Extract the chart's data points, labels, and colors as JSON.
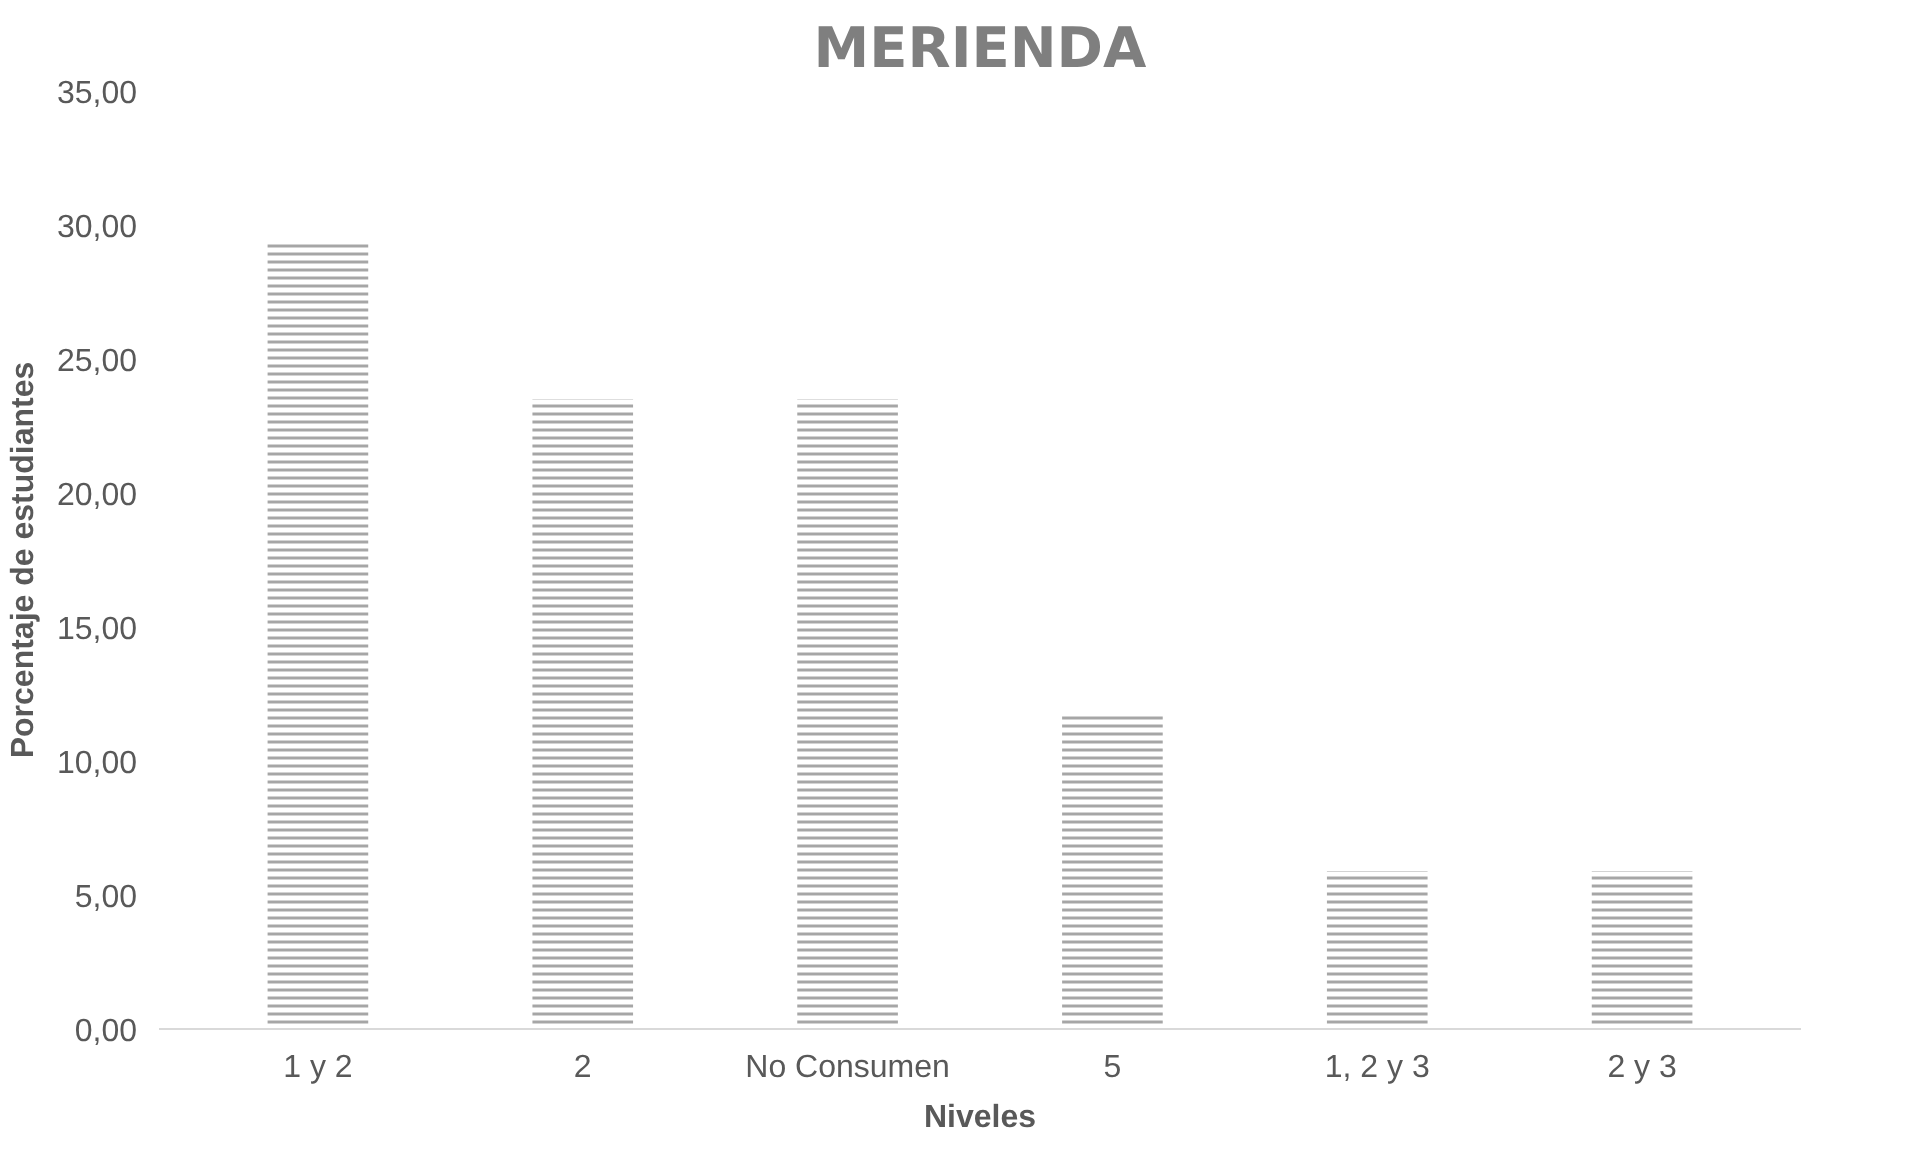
{
  "chart_data": {
    "type": "bar",
    "title": "MERIENDA",
    "xlabel": "Niveles",
    "ylabel": "Porcentaje de estudiantes",
    "categories": [
      "1 y 2",
      "2",
      "No Consumen",
      "5",
      "1, 2 y 3",
      "2 y 3"
    ],
    "values": [
      29.4,
      23.5,
      23.5,
      11.8,
      5.9,
      5.9
    ],
    "color": "#a6a6a6",
    "ylim": [
      0,
      35
    ],
    "yticks": [
      {
        "value": 0,
        "label": "0,00"
      },
      {
        "value": 5,
        "label": "5,00"
      },
      {
        "value": 10,
        "label": "10,00"
      },
      {
        "value": 15,
        "label": "15,00"
      },
      {
        "value": 20,
        "label": "20,00"
      },
      {
        "value": 25,
        "label": "25,00"
      },
      {
        "value": 30,
        "label": "30,00"
      },
      {
        "value": 35,
        "label": "35,00"
      }
    ],
    "grid": false
  }
}
